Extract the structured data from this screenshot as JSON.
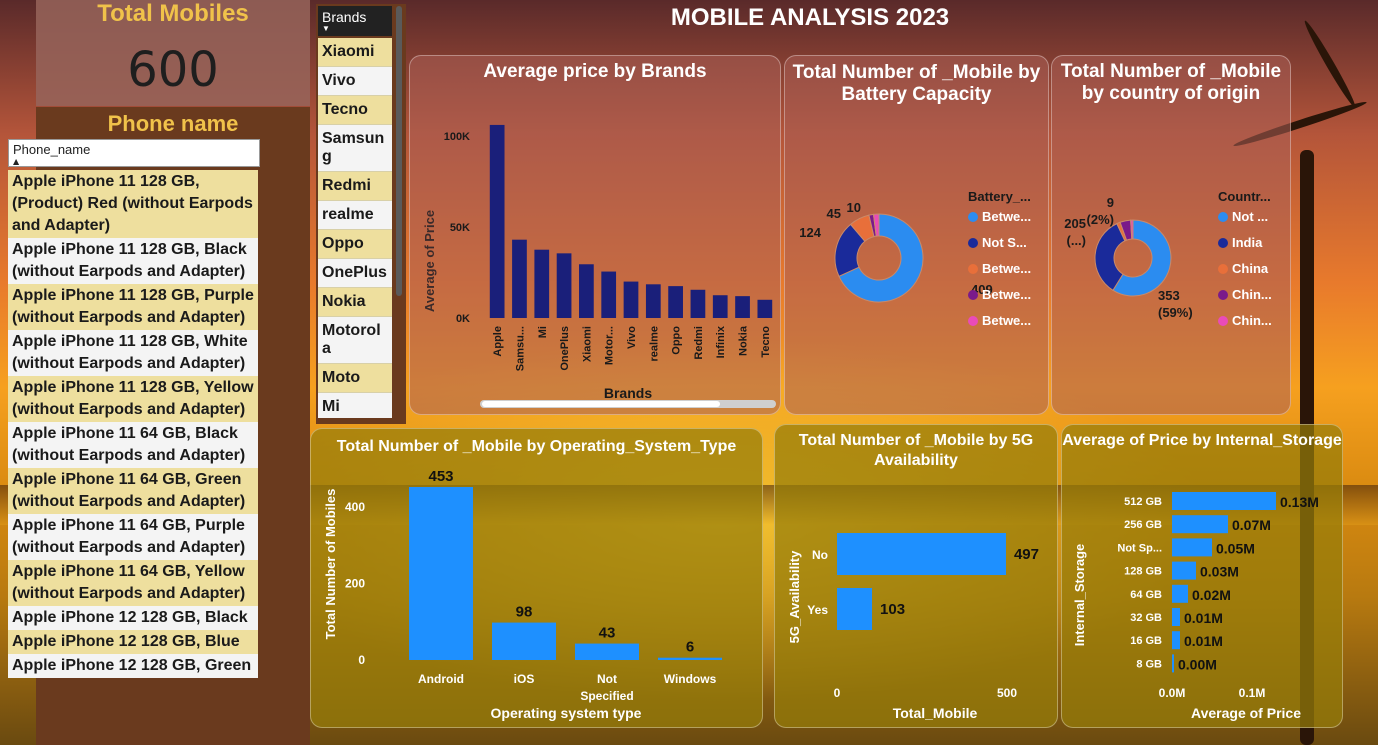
{
  "dashboard": {
    "title": "MOBILE ANALYSIS 2023",
    "total_card": {
      "label": "Total Mobiles",
      "value": "600"
    },
    "phone_slicer": {
      "title": "Phone name",
      "search_placeholder": "Phone_name",
      "items": [
        "Apple iPhone 11 128 GB, (Product) Red (without Earpods and Adapter)",
        "Apple iPhone 11 128 GB, Black (without Earpods and Adapter)",
        "Apple iPhone 11 128 GB, Purple (without Earpods and Adapter)",
        "Apple iPhone 11 128 GB, White (without Earpods and Adapter)",
        "Apple iPhone 11 128 GB, Yellow (without Earpods and Adapter)",
        "Apple iPhone 11 64 GB, Black (without Earpods and Adapter)",
        "Apple iPhone 11 64 GB, Green (without Earpods and Adapter)",
        "Apple iPhone 11 64 GB, Purple (without Earpods and Adapter)",
        "Apple iPhone 11 64 GB, Yellow (without Earpods and Adapter)",
        "Apple iPhone 12 128 GB, Black",
        "Apple iPhone 12 128 GB, Blue",
        "Apple iPhone 12 128 GB, Green"
      ]
    },
    "brand_slicer": {
      "title": "Brands",
      "items": [
        "Xiaomi",
        "Vivo",
        "Tecno",
        "Samsung",
        "Redmi",
        "realme",
        "Oppo",
        "OnePlus",
        "Nokia",
        "Motorola",
        "Moto",
        "Mi"
      ]
    }
  },
  "chart_data": [
    {
      "id": "avg-price-brands",
      "type": "bar",
      "title": "Average price by Brands",
      "xlabel": "Brands",
      "ylabel": "Average of Price",
      "categories": [
        "Apple",
        "Samsu...",
        "Mi",
        "OnePlus",
        "Xiaomi",
        "Motor...",
        "Vivo",
        "realme",
        "Oppo",
        "Redmi",
        "Infinix",
        "Nokia",
        "Tecno"
      ],
      "values": [
        106000,
        43000,
        37500,
        35500,
        29500,
        25500,
        20000,
        18500,
        17500,
        15500,
        12500,
        12000,
        10000
      ],
      "yticks": [
        "0K",
        "50K",
        "100K"
      ],
      "ylim": [
        0,
        112000
      ],
      "color": "#1a1f7a"
    },
    {
      "id": "battery-donut",
      "type": "pie",
      "title": "Total Number of _Mobile by Battery Capacity",
      "legend_title": "Battery_...",
      "legend": [
        "Betwe...",
        "Not S...",
        "Betwe...",
        "Betwe...",
        "Betwe..."
      ],
      "values": [
        409,
        124,
        45,
        10,
        12
      ],
      "slice_labels": [
        "409",
        "124",
        "45",
        "10",
        ""
      ],
      "colors": [
        "#2b8cf0",
        "#1a2a9a",
        "#e86f3a",
        "#7a1a8a",
        "#e94bb8"
      ]
    },
    {
      "id": "country-donut",
      "type": "pie",
      "title": "Total Number of _Mobile by country of origin",
      "legend_title": "Countr...",
      "legend": [
        "Not ...",
        "India",
        "China",
        "Chin...",
        "Chin..."
      ],
      "values": [
        353,
        205,
        9,
        27,
        6
      ],
      "slice_labels": [
        "353 (59%)",
        "205 (...)",
        "9 (2%)",
        "",
        ""
      ],
      "colors": [
        "#2b8cf0",
        "#1a2a9a",
        "#e86f3a",
        "#7a1a8a",
        "#e94bb8"
      ]
    },
    {
      "id": "os-type",
      "type": "bar",
      "title": "Total Number of _Mobile by Operating_System_Type",
      "xlabel": "Operating system type",
      "ylabel": "Total Number of Mobiles",
      "categories": [
        "Android",
        "iOS",
        "Not Specified",
        "Windows"
      ],
      "values": [
        453,
        98,
        43,
        6
      ],
      "yticks": [
        "0",
        "200",
        "400"
      ],
      "ylim": [
        0,
        480
      ],
      "color": "#1e90ff"
    },
    {
      "id": "5g-availability",
      "type": "bar",
      "orientation": "horizontal",
      "title": "Total Number of _Mobile by 5G Availability",
      "xlabel": "Total_Mobile",
      "ylabel": "5G_Availability",
      "categories": [
        "No",
        "Yes"
      ],
      "values": [
        497,
        103
      ],
      "xticks": [
        "0",
        "500"
      ],
      "xlim": [
        0,
        500
      ],
      "color": "#1e90ff"
    },
    {
      "id": "storage-price",
      "type": "bar",
      "orientation": "horizontal",
      "title": "Average of Price by Internal_Storage",
      "xlabel": "Average of Price",
      "ylabel": "Internal_Storage",
      "categories": [
        "512 GB",
        "256 GB",
        "Not Sp...",
        "128 GB",
        "64 GB",
        "32 GB",
        "16 GB",
        "8 GB"
      ],
      "values": [
        0.13,
        0.07,
        0.05,
        0.03,
        0.02,
        0.01,
        0.01,
        0.0
      ],
      "value_labels": [
        "0.13M",
        "0.07M",
        "0.05M",
        "0.03M",
        "0.02M",
        "0.01M",
        "0.01M",
        "0.00M"
      ],
      "xticks": [
        "0.0M",
        "0.1M"
      ],
      "xlim": [
        0,
        0.13
      ],
      "color": "#1e90ff"
    }
  ]
}
